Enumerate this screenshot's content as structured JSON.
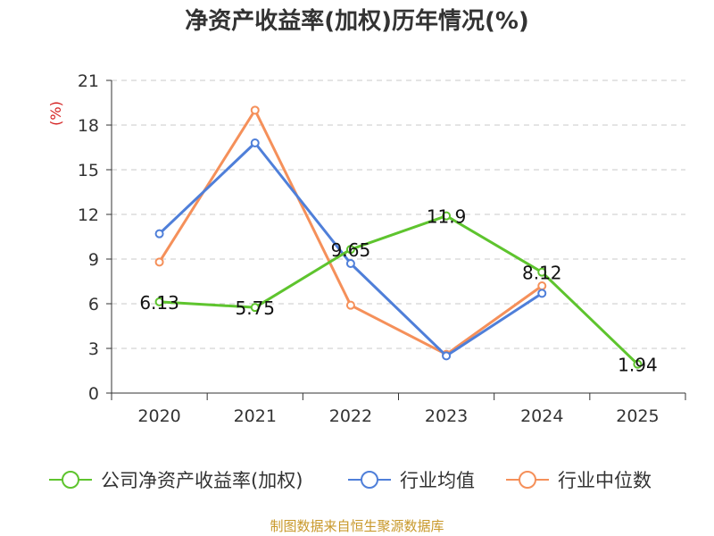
{
  "chart_data": {
    "type": "line",
    "title": "净资产收益率(加权)历年情况(%)",
    "ylabel": "(%)",
    "xlabel": "",
    "categories": [
      "2020",
      "2021",
      "2022",
      "2023",
      "2024",
      "2025"
    ],
    "ylim": [
      0,
      21
    ],
    "yticks": [
      0,
      3,
      6,
      9,
      12,
      15,
      18,
      21
    ],
    "grid": true,
    "legend_position": "bottom",
    "series": [
      {
        "name": "公司净资产收益率(加权)",
        "color": "#5ec42e",
        "values": [
          6.13,
          5.75,
          9.65,
          11.9,
          8.12,
          1.94
        ],
        "labels": [
          "6.13",
          "5.75",
          "9.65",
          "11.9",
          "8.12",
          "1.94"
        ]
      },
      {
        "name": "行业均值",
        "color": "#4f7fd9",
        "values": [
          10.7,
          16.8,
          8.7,
          2.5,
          6.7,
          null
        ]
      },
      {
        "name": "行业中位数",
        "color": "#f5905a",
        "values": [
          8.8,
          19.0,
          5.9,
          2.6,
          7.2,
          null
        ]
      }
    ],
    "source": "制图数据来自恒生聚源数据库",
    "source_color": "#c8982a",
    "ylabel_color": "#d42020"
  }
}
